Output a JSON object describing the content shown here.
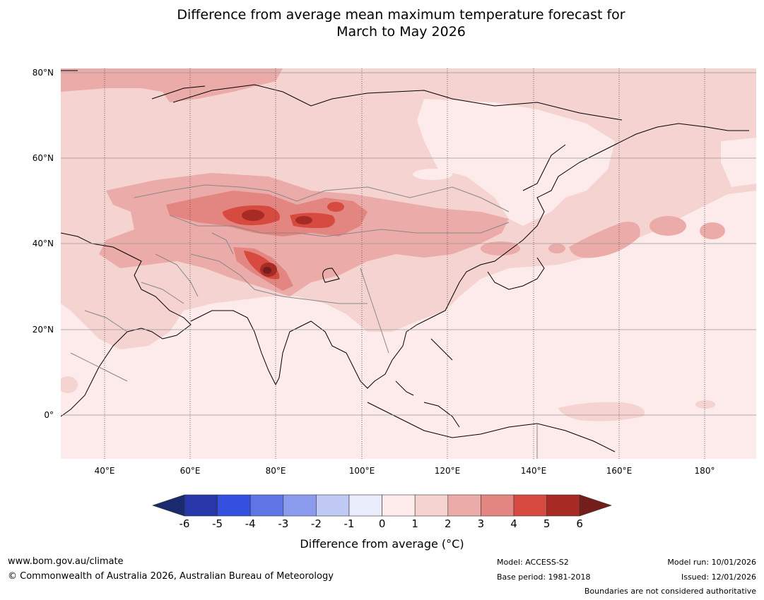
{
  "title_line1": "Difference from average mean maximum temperature forecast for",
  "title_line2": "March to May 2026",
  "map": {
    "lat_labels": [
      "80°N",
      "60°N",
      "40°N",
      "20°N",
      "0°"
    ],
    "lon_labels": [
      "40°E",
      "60°E",
      "80°E",
      "100°E",
      "120°E",
      "140°E",
      "160°E",
      "180°"
    ],
    "lat_range": [
      -10,
      80
    ],
    "lon_range": [
      30,
      192
    ]
  },
  "colorbar": {
    "ticks": [
      "-6",
      "-5",
      "-4",
      "-3",
      "-2",
      "-1",
      "0",
      "1",
      "2",
      "3",
      "4",
      "5",
      "6"
    ],
    "label": "Difference from average (°C)",
    "colors": {
      "below_min": "#1a2a6e",
      "m6_m5": "#2737a9",
      "m5_m4": "#3350df",
      "m4_m3": "#5f75e6",
      "m3_m2": "#8a9aec",
      "m2_m1": "#c0c8f4",
      "m1_0": "#e9ecfb",
      "p0_1": "#fcebea",
      "p1_2": "#f4d3d1",
      "p2_3": "#ebaba8",
      "p3_4": "#e38580",
      "p4_5": "#d64a40",
      "p5_6": "#a72a24",
      "above_max": "#741e1c"
    }
  },
  "footer": {
    "website": "www.bom.gov.au/climate",
    "copyright": "© Commonwealth of Australia 2026, Australian Bureau of Meteorology",
    "model": "Model: ACCESS-S2",
    "base_period": "Base period: 1981-2018",
    "model_run": "Model run: 10/01/2026",
    "issued": "Issued: 12/01/2026",
    "disclaimer": "Boundaries are not considered authoritative"
  }
}
